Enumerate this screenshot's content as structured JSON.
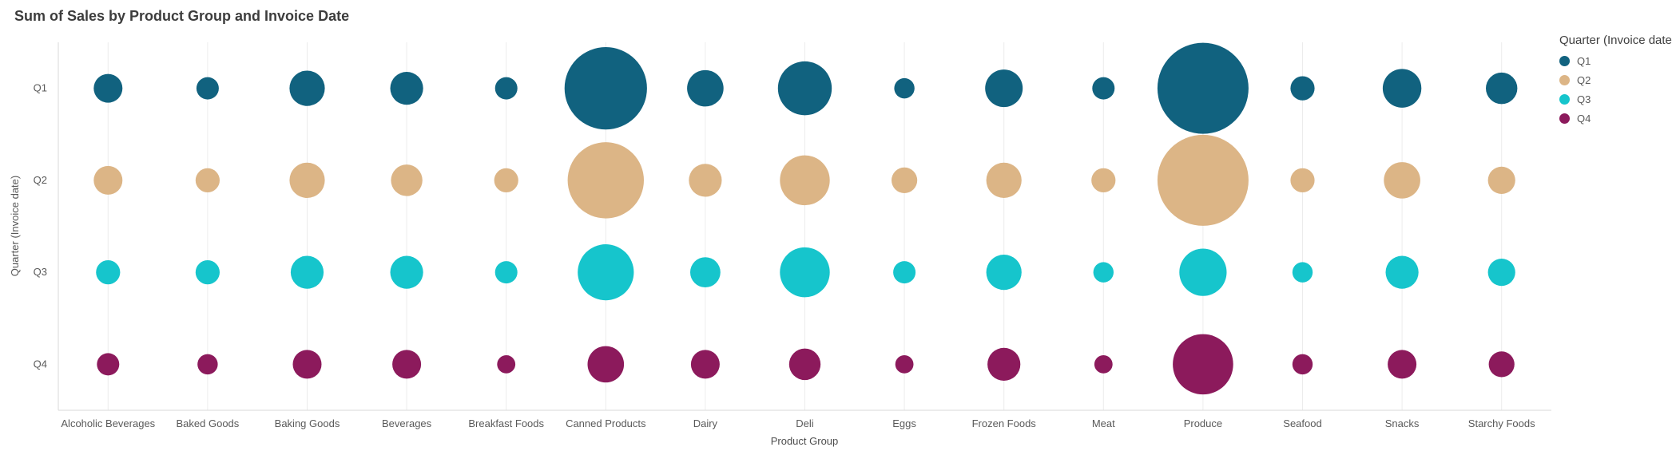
{
  "chart": {
    "title": "Sum of Sales by Product Group and Invoice Date",
    "x_axis_title": "Product Group",
    "y_axis_title": "Quarter (Invoice date)",
    "legend_title": "Quarter (Invoice date)"
  },
  "chart_data": {
    "type": "scatter",
    "subtype": "bubble",
    "title": "Sum of Sales by Product Group and Invoice Date",
    "xlabel": "Product Group",
    "ylabel": "Quarter (Invoice date)",
    "legend_position": "right",
    "grid": "vertical-only",
    "categories": [
      "Alcoholic Beverages",
      "Baked Goods",
      "Baking Goods",
      "Beverages",
      "Breakfast Foods",
      "Canned Products",
      "Dairy",
      "Deli",
      "Eggs",
      "Frozen Foods",
      "Meat",
      "Produce",
      "Seafood",
      "Snacks",
      "Starchy Foods"
    ],
    "y_categories": [
      "Q1",
      "Q2",
      "Q3",
      "Q4"
    ],
    "size_meaning": "relative Sum of Sales, bubble area proportional, largest (Produce Q1/Q2) = 100; no numeric labels visible",
    "series": [
      {
        "name": "Q1",
        "color": "#11627f",
        "sizes": [
          10,
          6,
          15,
          13,
          6,
          82,
          16,
          35,
          5,
          17,
          6,
          100,
          7,
          18,
          12
        ]
      },
      {
        "name": "Q2",
        "color": "#dcb586",
        "sizes": [
          10,
          7,
          15,
          12,
          7,
          70,
          13,
          30,
          8,
          15,
          7,
          100,
          7,
          16,
          9
        ]
      },
      {
        "name": "Q3",
        "color": "#16c5cc",
        "sizes": [
          7,
          7,
          13,
          13,
          6,
          38,
          11,
          30,
          6,
          15,
          5,
          27,
          5,
          13,
          9
        ]
      },
      {
        "name": "Q4",
        "color": "#8c1a5c",
        "sizes": [
          6,
          5,
          10,
          10,
          4,
          16,
          10,
          12,
          4,
          13,
          4,
          44,
          5,
          10,
          8
        ]
      }
    ]
  }
}
